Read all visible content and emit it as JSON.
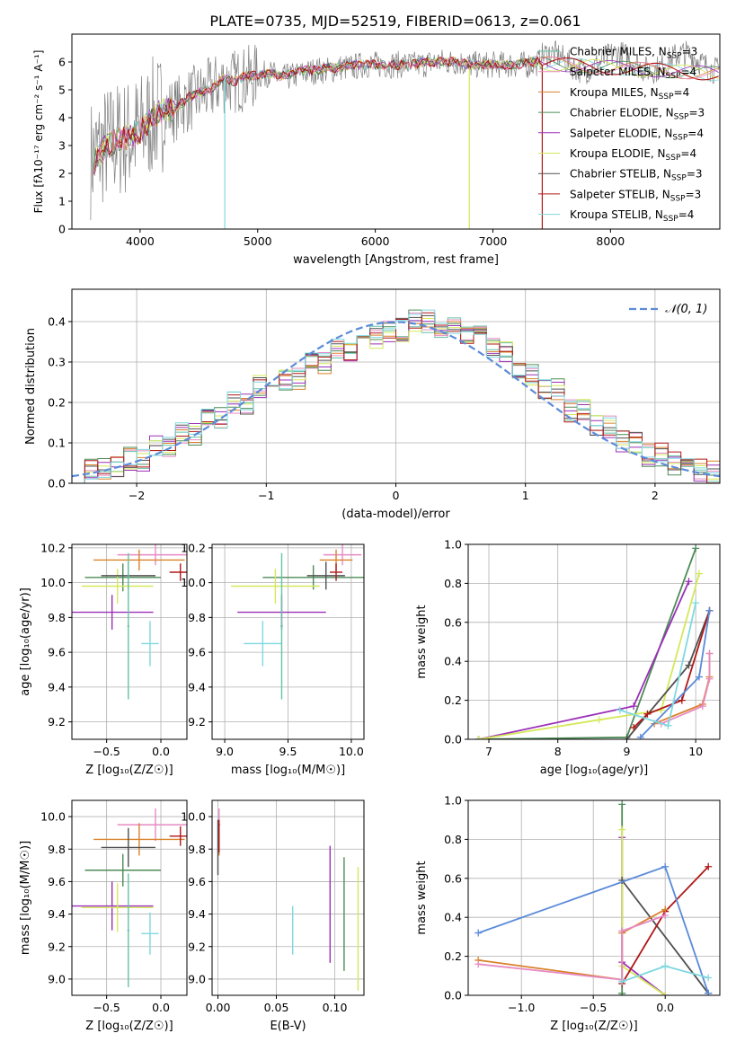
{
  "figure_title": "PLATE=0735, MJD=52519, FIBERID=0613, z=0.061",
  "chart_data": [
    {
      "id": "spectrum",
      "type": "line",
      "xlabel": "wavelength [Angstrom, rest frame]",
      "ylabel": "Flux [fλ10⁻¹⁷ erg cm⁻² s⁻¹ A⁻¹]",
      "xlim": [
        3420,
        8930
      ],
      "ylim": [
        0,
        7
      ],
      "xticks": [
        4000,
        5000,
        6000,
        7000,
        8000
      ],
      "yticks": [
        0,
        1,
        2,
        3,
        4,
        5,
        6
      ],
      "legend_position": "top-right",
      "data_series": {
        "name": "",
        "color": "#808080",
        "x": [
          3600,
          3700,
          3800,
          3900,
          4000,
          4100,
          4200,
          4300,
          4400,
          4500,
          4600,
          4700,
          4800,
          4900,
          5000,
          5100,
          5200,
          5300,
          5400,
          5500,
          5600,
          5700,
          5800,
          5900,
          6000,
          6100,
          6200,
          6300,
          6400,
          6500,
          6600,
          6700,
          6800,
          6900,
          7000,
          7100,
          7200,
          7300,
          7400
        ],
        "y": [
          2.6,
          3.0,
          3.2,
          3.3,
          3.5,
          4.0,
          4.2,
          4.3,
          4.6,
          4.8,
          5.0,
          5.3,
          5.3,
          5.4,
          5.5,
          5.6,
          5.4,
          5.5,
          5.6,
          5.7,
          5.7,
          5.8,
          5.8,
          5.9,
          5.9,
          5.9,
          5.9,
          5.9,
          5.9,
          6.0,
          6.0,
          6.0,
          5.9,
          5.9,
          5.9,
          5.9,
          5.9,
          5.9,
          6.0
        ]
      },
      "series": [
        {
          "name": "Chabrier MILES, N<sub>SSP</sub>=3",
          "color": "#66c2a5"
        },
        {
          "name": "Salpeter MILES, N<sub>SSP</sub>=4",
          "color": "#e78ac3"
        },
        {
          "name": "Kroupa MILES, N<sub>SSP</sub>=4",
          "color": "#d9822b"
        },
        {
          "name": "Chabrier ELODIE, N<sub>SSP</sub>=3",
          "color": "#4d8b57"
        },
        {
          "name": "Salpeter ELODIE, N<sub>SSP</sub>=4",
          "color": "#9b30b8"
        },
        {
          "name": "Kroupa ELODIE, N<sub>SSP</sub>=4",
          "color": "#d5e85a"
        },
        {
          "name": "Chabrier STELIB, N<sub>SSP</sub>=3",
          "color": "#505050"
        },
        {
          "name": "Salpeter STELIB, N<sub>SSP</sub>=3",
          "color": "#b01818"
        },
        {
          "name": "Kroupa STELIB, N<sub>SSP</sub>=4",
          "color": "#7fd8e0"
        }
      ],
      "model_curve": {
        "x": [
          3600,
          3700,
          3800,
          3900,
          4000,
          4100,
          4200,
          4300,
          4400,
          4500,
          4600,
          4700,
          4800,
          4900,
          5000,
          5100,
          5200,
          5300,
          5400,
          5500,
          5600,
          5700,
          5800,
          5900,
          6000,
          6100,
          6200,
          6300,
          6400,
          6500,
          6600,
          6700,
          6800,
          6900,
          7000,
          7100,
          7200,
          7300,
          7400
        ],
        "y": [
          2.4,
          2.9,
          3.2,
          3.3,
          3.5,
          4.0,
          4.3,
          4.3,
          4.7,
          4.9,
          5.0,
          5.4,
          5.3,
          5.5,
          5.5,
          5.6,
          5.5,
          5.6,
          5.7,
          5.7,
          5.8,
          5.8,
          5.9,
          5.9,
          5.9,
          5.9,
          5.9,
          5.9,
          6.0,
          6.0,
          6.0,
          6.0,
          5.9,
          5.9,
          5.9,
          5.9,
          5.9,
          6.0,
          6.0
        ]
      }
    },
    {
      "id": "residuals",
      "type": "line",
      "xlabel": "(data-model)/error",
      "ylabel": "Normed distribution",
      "xlim": [
        -2.5,
        2.5
      ],
      "ylim": [
        0,
        0.48
      ],
      "xticks": [
        -2,
        -1,
        0,
        1,
        2
      ],
      "yticks": [
        0.0,
        0.1,
        0.2,
        0.3,
        0.4
      ],
      "legend": {
        "name": "𝒩(0, 1)",
        "color": "#5b8bd9",
        "position": "top-right"
      },
      "bin_edges": [
        -2.5,
        -2.3,
        -2.1,
        -1.9,
        -1.7,
        -1.5,
        -1.3,
        -1.1,
        -0.9,
        -0.7,
        -0.5,
        -0.3,
        -0.1,
        0.1,
        0.3,
        0.5,
        0.7,
        0.9,
        1.1,
        1.3,
        1.5,
        1.7,
        1.9,
        2.1,
        2.3,
        2.5
      ],
      "hist_values": [
        0.03,
        0.04,
        0.06,
        0.09,
        0.12,
        0.16,
        0.2,
        0.24,
        0.26,
        0.3,
        0.33,
        0.36,
        0.38,
        0.4,
        0.39,
        0.36,
        0.33,
        0.27,
        0.23,
        0.18,
        0.14,
        0.1,
        0.07,
        0.05,
        0.03
      ]
    },
    {
      "id": "age-vs-z",
      "type": "scatter",
      "xlabel": "Z [log₁₀(Z/Z☉)]",
      "ylabel": "age  [log₁₀(age/yr)]",
      "xlim": [
        -0.82,
        0.24
      ],
      "ylim": [
        9.1,
        10.22
      ],
      "xticks": [
        -0.5,
        0.0
      ],
      "yticks": [
        9.2,
        9.4,
        9.6,
        9.8,
        10.0,
        10.2
      ],
      "points": [
        {
          "x": -0.05,
          "y": 10.16,
          "xerr": 0.35,
          "yerr": 0.06,
          "color": "#e78ac3"
        },
        {
          "x": -0.2,
          "y": 10.13,
          "xerr": 0.42,
          "yerr": 0.06,
          "color": "#d9822b"
        },
        {
          "x": -0.35,
          "y": 10.03,
          "xerr": 0.35,
          "yerr": 0.08,
          "color": "#4d8b57"
        },
        {
          "x": -0.45,
          "y": 9.83,
          "xerr": 0.38,
          "yerr": 0.1,
          "color": "#9b30b8"
        },
        {
          "x": -0.4,
          "y": 9.98,
          "xerr": 0.33,
          "yerr": 0.1,
          "color": "#d5e85a"
        },
        {
          "x": -0.3,
          "y": 10.04,
          "xerr": 0.25,
          "yerr": 0.08,
          "color": "#505050"
        },
        {
          "x": 0.18,
          "y": 10.06,
          "xerr": 0.1,
          "yerr": 0.05,
          "color": "#b01818"
        },
        {
          "x": -0.1,
          "y": 9.65,
          "xerr": 0.08,
          "yerr": 0.13,
          "color": "#7fd8e0"
        },
        {
          "x": -0.3,
          "y": 9.75,
          "xerr": 0.01,
          "yerr": 0.42,
          "color": "#66c2a5"
        }
      ]
    },
    {
      "id": "age-vs-mass",
      "type": "scatter",
      "xlabel": "mass [log₁₀(M/M☉)]",
      "ylabel": "",
      "xlim": [
        8.9,
        10.1
      ],
      "ylim": [
        9.1,
        10.22
      ],
      "xticks": [
        9.0,
        9.5,
        10.0
      ],
      "yticks": [
        9.2,
        9.4,
        9.6,
        9.8,
        10.0,
        10.2
      ],
      "points": [
        {
          "x": 9.93,
          "y": 10.16,
          "xerr": 0.15,
          "yerr": 0.06,
          "color": "#e78ac3"
        },
        {
          "x": 9.88,
          "y": 10.13,
          "xerr": 0.13,
          "yerr": 0.06,
          "color": "#d9822b"
        },
        {
          "x": 9.7,
          "y": 10.03,
          "xerr": 0.4,
          "yerr": 0.07,
          "color": "#4d8b57"
        },
        {
          "x": 9.45,
          "y": 9.83,
          "xerr": 0.35,
          "yerr": 0.1,
          "color": "#9b30b8"
        },
        {
          "x": 9.4,
          "y": 9.98,
          "xerr": 0.35,
          "yerr": 0.1,
          "color": "#d5e85a"
        },
        {
          "x": 9.8,
          "y": 10.04,
          "xerr": 0.15,
          "yerr": 0.08,
          "color": "#505050"
        },
        {
          "x": 9.88,
          "y": 10.06,
          "xerr": 0.05,
          "yerr": 0.05,
          "color": "#b01818"
        },
        {
          "x": 9.3,
          "y": 9.65,
          "xerr": 0.15,
          "yerr": 0.13,
          "color": "#7fd8e0"
        },
        {
          "x": 9.45,
          "y": 9.75,
          "xerr": 0.01,
          "yerr": 0.42,
          "color": "#66c2a5"
        }
      ]
    },
    {
      "id": "mass-weight-vs-age",
      "type": "line",
      "xlabel": "age  [log₁₀(age/yr)]",
      "ylabel": "mass weight",
      "xlim": [
        6.7,
        10.35
      ],
      "ylim": [
        0,
        1
      ],
      "xticks": [
        7,
        8,
        9,
        10
      ],
      "yticks": [
        0.0,
        0.2,
        0.4,
        0.6,
        0.8,
        1.0
      ],
      "series": [
        {
          "color": "#4d8b57",
          "x": [
            6.85,
            9.0,
            10.0
          ],
          "y": [
            0.0,
            0.01,
            0.98
          ]
        },
        {
          "color": "#9b30b8",
          "x": [
            6.85,
            9.1,
            9.9
          ],
          "y": [
            0.0,
            0.17,
            0.81
          ]
        },
        {
          "color": "#d5e85a",
          "x": [
            6.85,
            8.6,
            9.5,
            10.05
          ],
          "y": [
            0.0,
            0.1,
            0.15,
            0.85
          ]
        },
        {
          "color": "#505050",
          "x": [
            9.0,
            9.9,
            10.2
          ],
          "y": [
            0.0,
            0.38,
            0.66
          ]
        },
        {
          "color": "#b01818",
          "x": [
            9.1,
            9.3,
            9.8,
            10.2
          ],
          "y": [
            0.06,
            0.13,
            0.2,
            0.66
          ]
        },
        {
          "color": "#d9822b",
          "x": [
            9.4,
            10.1,
            10.2,
            10.2
          ],
          "y": [
            0.08,
            0.18,
            0.32,
            0.44
          ]
        },
        {
          "color": "#e78ac3",
          "x": [
            9.5,
            10.1,
            10.2,
            10.2
          ],
          "y": [
            0.08,
            0.17,
            0.31,
            0.44
          ]
        },
        {
          "color": "#5b8bd9",
          "x": [
            9.2,
            10.05,
            10.2
          ],
          "y": [
            0.01,
            0.32,
            0.66
          ]
        },
        {
          "color": "#7fd8e0",
          "x": [
            8.9,
            9.6,
            10.0
          ],
          "y": [
            0.15,
            0.07,
            0.7
          ]
        }
      ]
    },
    {
      "id": "mass-vs-z",
      "type": "scatter",
      "xlabel": "Z [log₁₀(Z/Z☉)]",
      "ylabel": "mass [log₁₀(M/M☉)]",
      "xlim": [
        -0.82,
        0.24
      ],
      "ylim": [
        8.9,
        10.1
      ],
      "xticks": [
        -0.5,
        0.0
      ],
      "yticks": [
        9.0,
        9.2,
        9.4,
        9.6,
        9.8,
        10.0
      ],
      "points": [
        {
          "x": -0.05,
          "y": 9.95,
          "xerr": 0.35,
          "yerr": 0.1,
          "color": "#e78ac3"
        },
        {
          "x": -0.2,
          "y": 9.86,
          "xerr": 0.42,
          "yerr": 0.1,
          "color": "#d9822b"
        },
        {
          "x": -0.35,
          "y": 9.67,
          "xerr": 0.35,
          "yerr": 0.1,
          "color": "#4d8b57"
        },
        {
          "x": -0.45,
          "y": 9.45,
          "xerr": 0.38,
          "yerr": 0.15,
          "color": "#9b30b8"
        },
        {
          "x": -0.4,
          "y": 9.44,
          "xerr": 0.33,
          "yerr": 0.15,
          "color": "#d5e85a"
        },
        {
          "x": -0.3,
          "y": 9.81,
          "xerr": 0.25,
          "yerr": 0.12,
          "color": "#505050"
        },
        {
          "x": 0.18,
          "y": 9.88,
          "xerr": 0.1,
          "yerr": 0.06,
          "color": "#b01818"
        },
        {
          "x": -0.1,
          "y": 9.28,
          "xerr": 0.08,
          "yerr": 0.13,
          "color": "#7fd8e0"
        },
        {
          "x": -0.3,
          "y": 9.3,
          "xerr": 0.01,
          "yerr": 0.35,
          "color": "#66c2a5"
        }
      ]
    },
    {
      "id": "mass-vs-ebv",
      "type": "scatter",
      "xlabel": "E(B-V)",
      "ylabel": "",
      "xlim": [
        -0.005,
        0.125
      ],
      "ylim": [
        8.9,
        10.1
      ],
      "xticks": [
        0.0,
        0.05,
        0.1
      ],
      "yticks": [
        9.0,
        9.2,
        9.4,
        9.6,
        9.8,
        10.0
      ],
      "points": [
        {
          "x": 0.001,
          "y": 9.95,
          "xerr": 0.001,
          "yerr": 0.1,
          "color": "#e78ac3"
        },
        {
          "x": 0.001,
          "y": 9.86,
          "xerr": 0.0,
          "yerr": 0.1,
          "color": "#d9822b"
        },
        {
          "x": 0.108,
          "y": 9.4,
          "xerr": 0.0,
          "yerr": 0.35,
          "color": "#4d8b57"
        },
        {
          "x": 0.096,
          "y": 9.46,
          "xerr": 0.0,
          "yerr": 0.36,
          "color": "#9b30b8"
        },
        {
          "x": 0.12,
          "y": 9.31,
          "xerr": 0.0,
          "yerr": 0.38,
          "color": "#d5e85a"
        },
        {
          "x": 0.0,
          "y": 9.81,
          "xerr": 0.0,
          "yerr": 0.17,
          "color": "#505050"
        },
        {
          "x": 0.001,
          "y": 9.88,
          "xerr": 0.0,
          "yerr": 0.1,
          "color": "#b01818"
        },
        {
          "x": 0.064,
          "y": 9.3,
          "xerr": 0.0,
          "yerr": 0.15,
          "color": "#7fd8e0"
        }
      ]
    },
    {
      "id": "mass-weight-vs-z",
      "type": "line",
      "xlabel": "Z [log₁₀(Z/Z☉)]",
      "ylabel": "mass weight",
      "xlim": [
        -1.37,
        0.38
      ],
      "ylim": [
        0,
        1
      ],
      "xticks": [
        -1.0,
        -0.5,
        0.0
      ],
      "yticks": [
        0.0,
        0.2,
        0.4,
        0.6,
        0.8,
        1.0
      ],
      "series": [
        {
          "color": "#4d8b57",
          "x": [
            -0.3,
            -0.3,
            -0.3
          ],
          "y": [
            0.0,
            0.01,
            0.98
          ]
        },
        {
          "color": "#9b30b8",
          "x": [
            -0.3,
            -0.3,
            0.0
          ],
          "y": [
            0.81,
            0.17,
            0.0
          ]
        },
        {
          "color": "#d5e85a",
          "x": [
            -0.3,
            -0.3,
            0.0
          ],
          "y": [
            0.85,
            0.15,
            0.0
          ]
        },
        {
          "color": "#505050",
          "x": [
            -0.3,
            0.3
          ],
          "y": [
            0.59,
            0.01
          ]
        },
        {
          "color": "#b01818",
          "x": [
            -0.3,
            0.0,
            0.3
          ],
          "y": [
            0.06,
            0.43,
            0.66
          ]
        },
        {
          "color": "#d9822b",
          "x": [
            -1.3,
            -0.3,
            -0.3,
            0.0
          ],
          "y": [
            0.18,
            0.08,
            0.32,
            0.44
          ]
        },
        {
          "color": "#e78ac3",
          "x": [
            -1.3,
            -0.3,
            -0.3,
            0.0
          ],
          "y": [
            0.16,
            0.08,
            0.33,
            0.41
          ]
        },
        {
          "color": "#5b8bd9",
          "x": [
            -1.3,
            0.0,
            0.3
          ],
          "y": [
            0.32,
            0.66,
            0.01
          ]
        },
        {
          "color": "#7fd8e0",
          "x": [
            -0.3,
            0.0,
            0.3
          ],
          "y": [
            0.07,
            0.15,
            0.09
          ]
        }
      ]
    }
  ]
}
